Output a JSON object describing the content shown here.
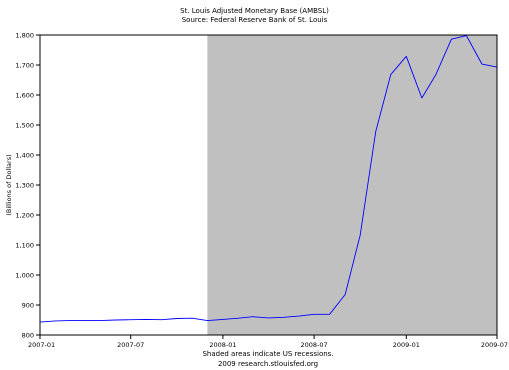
{
  "chart_data": {
    "type": "line",
    "title": "St. Louis Adjusted Monetary Base (AMBSL)",
    "subtitle": "Source: Federal Reserve Bank of St. Louis",
    "xlabel": "",
    "ylabel": "(Billions of Dollars)",
    "x_ticks": [
      "2007-01",
      "2007-07",
      "2008-01",
      "2008-07",
      "2009-01",
      "2009-07"
    ],
    "y_ticks": [
      "800",
      "900",
      "1,000",
      "1,100",
      "1,200",
      "1,300",
      "1,400",
      "1,500",
      "1,600",
      "1,700",
      "1,800"
    ],
    "xlim": [
      "2007-01-01",
      "2009-07-01"
    ],
    "ylim": [
      800,
      1800
    ],
    "grid": false,
    "recession_shading": {
      "start": "2007-12-01",
      "end": "2009-07-01",
      "color": "#c0c0c0"
    },
    "series": [
      {
        "color": "#0000ff",
        "x": [
          "2007-01-01",
          "2007-02-01",
          "2007-03-01",
          "2007-04-01",
          "2007-05-01",
          "2007-06-01",
          "2007-07-01",
          "2007-08-01",
          "2007-09-01",
          "2007-10-01",
          "2007-11-01",
          "2007-12-01",
          "2008-01-01",
          "2008-02-01",
          "2008-03-01",
          "2008-04-01",
          "2008-05-01",
          "2008-06-01",
          "2008-07-01",
          "2008-08-01",
          "2008-09-01",
          "2008-10-01",
          "2008-11-01",
          "2008-12-01",
          "2009-01-01",
          "2009-02-01",
          "2009-03-01",
          "2009-04-01",
          "2009-05-01",
          "2009-06-01",
          "2009-07-01"
        ],
        "values": [
          843,
          847,
          848,
          848,
          848,
          850,
          851,
          852,
          851,
          855,
          856,
          848,
          852,
          856,
          861,
          857,
          859,
          863,
          869,
          869,
          935,
          1133,
          1478,
          1668,
          1729,
          1590,
          1668,
          1786,
          1798,
          1703,
          1693
        ]
      }
    ],
    "footer": [
      "Shaded areas indicate US recessions.",
      "2009 research.stlouisfed.org"
    ]
  },
  "colors": {
    "plot_background": "#ffffff",
    "recession_fill": "#c0c0c0",
    "line": "#0000ff",
    "axis": "#000000",
    "page_background": "#ffffff"
  }
}
